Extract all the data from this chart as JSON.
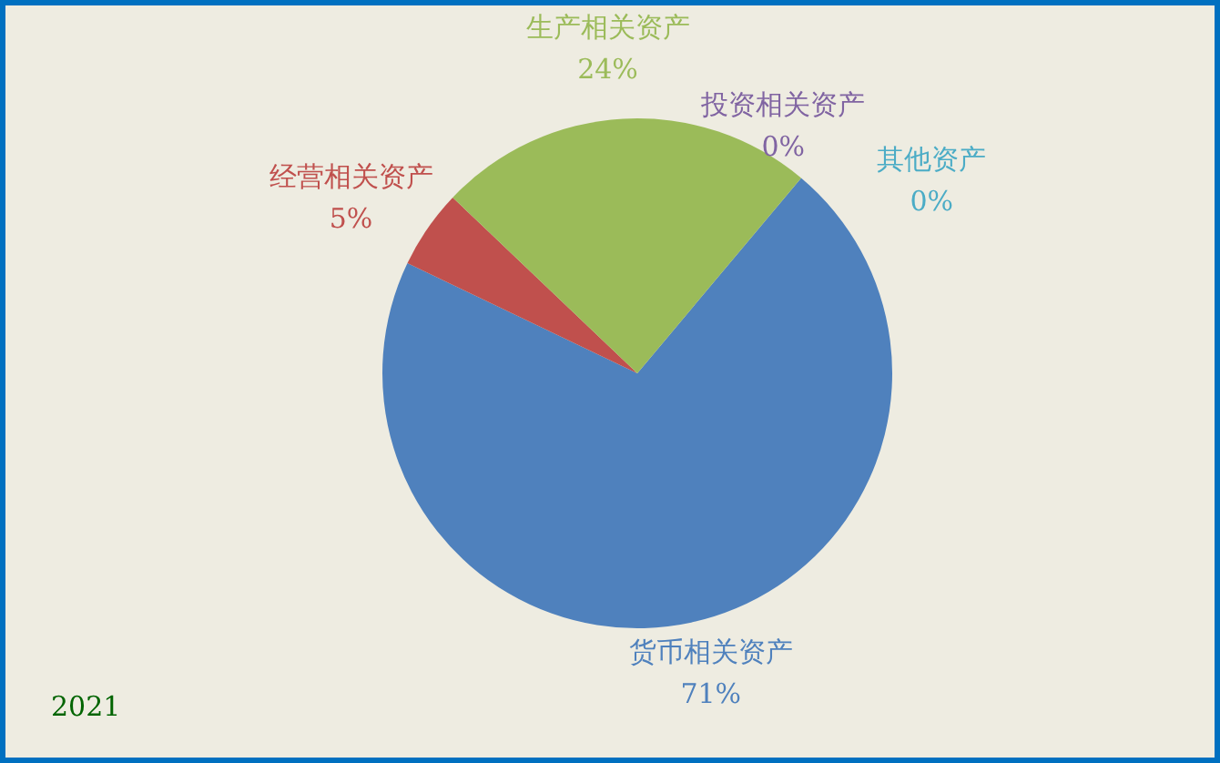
{
  "chart_data": {
    "type": "pie",
    "categories": [
      "货币相关资产",
      "经营相关资产",
      "生产相关资产",
      "投资相关资产",
      "其他资产"
    ],
    "values": [
      71,
      5,
      24,
      0,
      0
    ],
    "value_labels": [
      "71%",
      "5%",
      "24%",
      "0%",
      "0%"
    ],
    "colors": [
      "#4f81bd",
      "#c0504d",
      "#9bbb59",
      "#8064a2",
      "#4bacc6"
    ],
    "annotations": [
      "2021"
    ]
  }
}
